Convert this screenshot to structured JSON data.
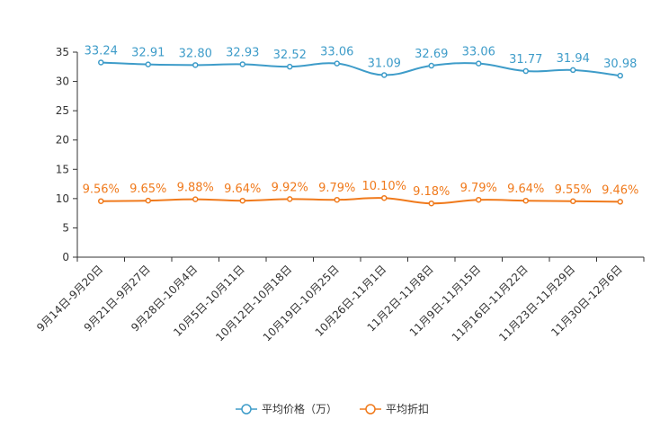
{
  "chart_data": {
    "type": "line",
    "categories": [
      "9月14日-9月20日",
      "9月21日-9月27日",
      "9月28日-10月4日",
      "10月5日-10月11日",
      "10月12日-10月18日",
      "10月19日-10月25日",
      "10月26日-11月1日",
      "11月2日-11月8日",
      "11月9日-11月15日",
      "11月16日-11月22日",
      "11月23日-11月29日",
      "11月30日-12月6日"
    ],
    "ylim": [
      0,
      35
    ],
    "yticks": [
      0,
      5,
      10,
      15,
      20,
      25,
      30,
      35
    ],
    "grid": false,
    "legend_position": "bottom-center",
    "series": [
      {
        "name": "平均价格（万）",
        "color": "#3e9cc9",
        "values": [
          33.24,
          32.91,
          32.8,
          32.93,
          32.52,
          33.06,
          31.09,
          32.69,
          33.06,
          31.77,
          31.94,
          30.98
        ],
        "labels": [
          "33.24",
          "32.91",
          "32.80",
          "32.93",
          "32.52",
          "33.06",
          "31.09",
          "32.69",
          "33.06",
          "31.77",
          "31.94",
          "30.98"
        ]
      },
      {
        "name": "平均折扣",
        "color": "#f07a1c",
        "values": [
          9.56,
          9.65,
          9.88,
          9.64,
          9.92,
          9.79,
          10.1,
          9.18,
          9.79,
          9.64,
          9.55,
          9.46
        ],
        "labels": [
          "9.56%",
          "9.65%",
          "9.88%",
          "9.64%",
          "9.92%",
          "9.79%",
          "10.10%",
          "9.18%",
          "9.79%",
          "9.64%",
          "9.55%",
          "9.46%"
        ]
      }
    ]
  }
}
